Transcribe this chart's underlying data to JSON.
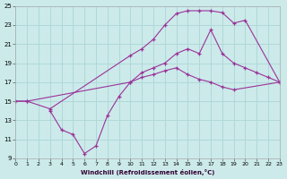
{
  "xlabel": "Windchill (Refroidissement éolien,°C)",
  "bg_color": "#cceaea",
  "line_color": "#993399",
  "grid_color": "#b0d8d8",
  "xlim": [
    0,
    23
  ],
  "ylim": [
    9,
    25
  ],
  "xticks": [
    0,
    1,
    2,
    3,
    4,
    5,
    6,
    7,
    8,
    9,
    10,
    11,
    12,
    13,
    14,
    15,
    16,
    17,
    18,
    19,
    20,
    21,
    22,
    23
  ],
  "yticks": [
    9,
    11,
    13,
    15,
    17,
    19,
    21,
    23,
    25
  ],
  "curve1_x": [
    0,
    1,
    10,
    11,
    12,
    13,
    14,
    15,
    16,
    17,
    18,
    19,
    23
  ],
  "curve1_y": [
    15,
    15,
    17,
    17.5,
    17.8,
    18.2,
    18.5,
    17.8,
    17.3,
    17.0,
    16.5,
    16.2,
    17
  ],
  "curve2_x": [
    3,
    4,
    5,
    6,
    7,
    8,
    9,
    10,
    11,
    12,
    13,
    14,
    15,
    16,
    17,
    18,
    19,
    20,
    21,
    22,
    23
  ],
  "curve2_y": [
    14,
    12,
    11.5,
    9.5,
    10.3,
    13.5,
    15.5,
    17,
    18,
    18.5,
    19,
    20,
    20.5,
    20,
    22.5,
    20,
    19,
    18.5,
    18,
    17.5,
    17
  ],
  "curve3_x": [
    0,
    1,
    3,
    10,
    11,
    12,
    13,
    14,
    15,
    16,
    17,
    18,
    19,
    20,
    23
  ],
  "curve3_y": [
    15,
    15,
    14.2,
    19.8,
    20.5,
    21.5,
    23,
    24.2,
    24.5,
    24.5,
    24.5,
    24.3,
    23.2,
    23.5,
    17
  ]
}
